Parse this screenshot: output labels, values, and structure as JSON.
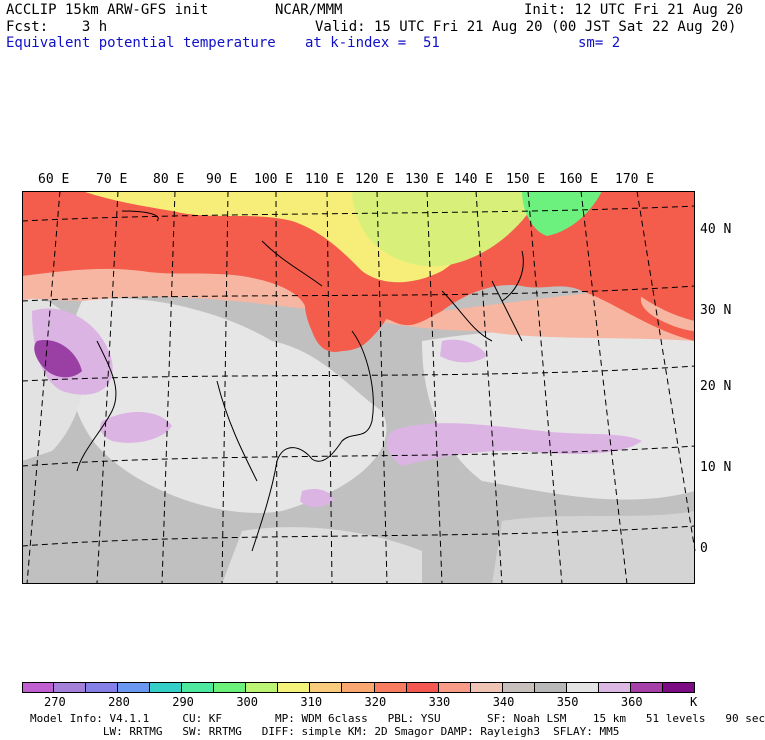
{
  "header": {
    "model_line": "ACCLIP 15km ARW-GFS init",
    "org": "NCAR/MMM",
    "init": "Init: 12 UTC Fri 21 Aug 20",
    "fcst": "Fcst:    3 h",
    "valid": "Valid: 15 UTC Fri 21 Aug 20 (00 JST Sat 22 Aug 20)",
    "field_name": "Equivalent potential temperature",
    "level": "at k-index =  51",
    "smoothing": "sm= 2"
  },
  "map": {
    "lon_labels": [
      "60 E",
      "70 E",
      "80 E",
      "90 E",
      "100 E",
      "110 E",
      "120 E",
      "130 E",
      "140 E",
      "150 E",
      "160 E",
      "170 E"
    ],
    "lat_labels": [
      "40 N",
      "30 N",
      "20 N",
      "10 N",
      "0"
    ],
    "colors": {
      "background_gray": "#b8b8b8",
      "light_gray": "#cfcfcf",
      "near_white": "#ececec",
      "salmon": "#f7b8a4",
      "orange_red": "#f45c4c",
      "yellow": "#f6f07c",
      "lime": "#d9f07a",
      "green": "#6ef07e",
      "lavender": "#dcb4e4",
      "purple": "#9a40a4"
    }
  },
  "colorbar": {
    "colors": [
      "#c060d0",
      "#a480d8",
      "#8480e8",
      "#6a98f0",
      "#34d0c8",
      "#4ce8a0",
      "#6cf07c",
      "#bcf474",
      "#f4f47c",
      "#f8cc7c",
      "#f8a870",
      "#f87c60",
      "#f45850",
      "#f89c88",
      "#f0c4b4",
      "#c8c0bc",
      "#b8b8b8",
      "#e4e4e4",
      "#dcb8e4",
      "#a440a8",
      "#7c0c84"
    ],
    "ticks": [
      "270",
      "280",
      "290",
      "300",
      "310",
      "320",
      "330",
      "340",
      "350",
      "360"
    ],
    "unit": "K"
  },
  "footer": {
    "line1": "Model Info: V4.1.1     CU: KF        MP: WDM 6class   PBL: YSU       SF: Noah LSM    15 km   51 levels   90 sec",
    "line2": "           LW: RRTMG   SW: RRTMG   DIFF: simple KM: 2D Smagor DAMP: Rayleigh3  SFLAY: MM5"
  }
}
